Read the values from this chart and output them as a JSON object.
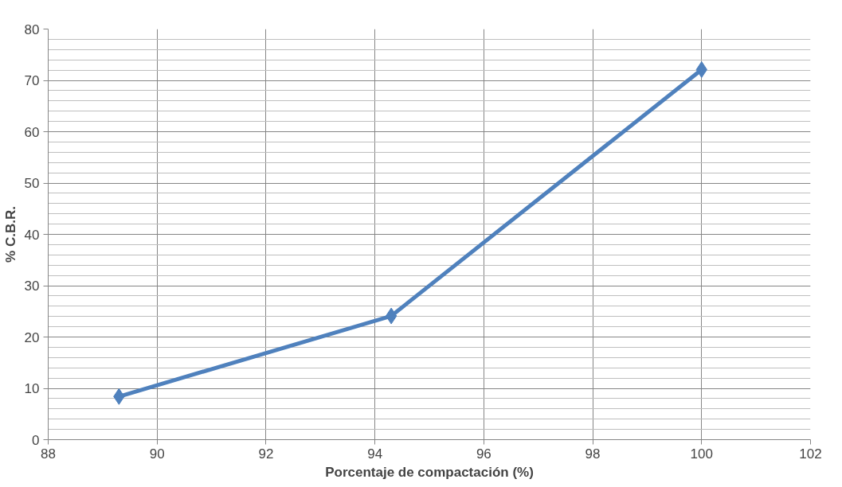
{
  "chart_data": {
    "type": "line",
    "xlabel": "Porcentaje de compactación (%)",
    "ylabel": "% C.B.R.",
    "x": [
      89.3,
      94.3,
      100
    ],
    "series": [
      {
        "color": "#4f81bd",
        "values": [
          8.4,
          24.1,
          72.1
        ]
      }
    ],
    "xlim": [
      88,
      102
    ],
    "xticks": [
      88,
      90,
      92,
      94,
      96,
      98,
      100,
      102
    ],
    "ylim": [
      0,
      80
    ],
    "yticks": [
      0,
      10,
      20,
      30,
      40,
      50,
      60,
      70,
      80
    ],
    "grid": true,
    "marker": "diamond",
    "line_style": "solid"
  }
}
